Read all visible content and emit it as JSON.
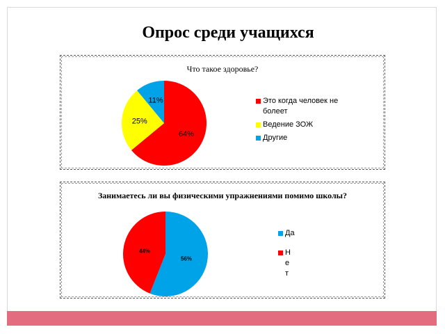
{
  "page": {
    "title": "Опрос среди учащихся"
  },
  "chart_data": [
    {
      "type": "pie",
      "title": "Что такое здоровье?",
      "categories": [
        "Это  когда человек не болеет",
        "Ведение ЗОЖ",
        "Другие"
      ],
      "values": [
        64,
        25,
        11
      ],
      "labels": [
        "64%",
        "25%",
        "11%"
      ],
      "colors": [
        "#ff0000",
        "#ffff00",
        "#00a2e8"
      ],
      "legend": "right"
    },
    {
      "type": "pie",
      "title": "Занимаетесь ли вы физическими упражнениями помимо школы?",
      "categories": [
        "Да",
        "Нет"
      ],
      "values": [
        56,
        44
      ],
      "labels": [
        "56%",
        "44%"
      ],
      "colors": [
        "#00a2e8",
        "#ff0000"
      ],
      "legend": "right"
    }
  ]
}
